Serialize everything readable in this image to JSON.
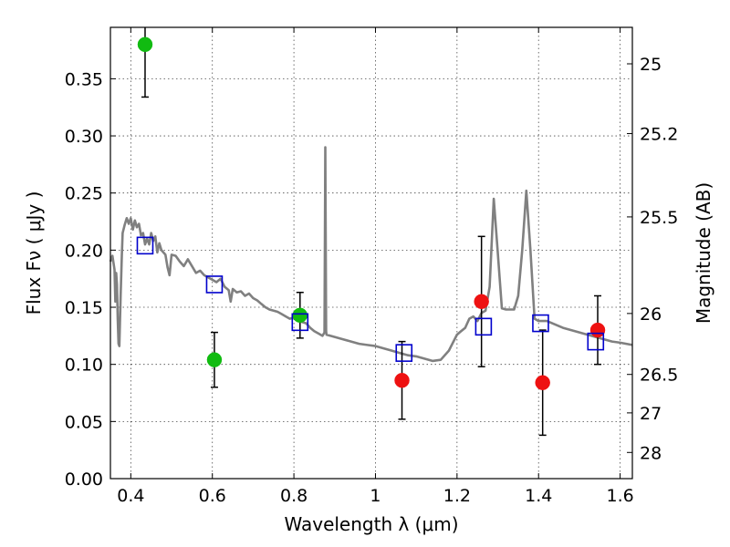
{
  "chart_data": {
    "type": "scatter",
    "xlabel": "Wavelength  λ (μm)",
    "ylabel": "Flux  Fν  ( μJy )",
    "ylabel_right": "Magnitude (AB)",
    "xlim": [
      0.35,
      1.63
    ],
    "ylim": [
      0.0,
      0.395
    ],
    "grid": true,
    "x_ticks": [
      0.4,
      0.6,
      0.8,
      1.0,
      1.2,
      1.4,
      1.6
    ],
    "x_tick_labels": [
      "0.4",
      "0.6",
      "0.8",
      "1",
      "1.2",
      "1.4",
      "1.6"
    ],
    "y_ticks": [
      0.0,
      0.05,
      0.1,
      0.15,
      0.2,
      0.25,
      0.3,
      0.35
    ],
    "y_tick_labels": [
      "0.00",
      "0.05",
      "0.10",
      "0.15",
      "0.20",
      "0.25",
      "0.30",
      "0.35"
    ],
    "right_ticks": [
      {
        "label": "25",
        "mag": 25.0
      },
      {
        "label": "25.2",
        "mag": 25.2
      },
      {
        "label": "25.5",
        "mag": 25.5
      },
      {
        "label": "26",
        "mag": 26.0
      },
      {
        "label": "26.5",
        "mag": 26.5
      },
      {
        "label": "27",
        "mag": 27.0
      },
      {
        "label": "28",
        "mag": 28.0
      }
    ],
    "colors": {
      "model": "#808080",
      "green": "#11bb11",
      "red": "#ee1111",
      "square": "#0000cc",
      "errorbar": "#000000"
    },
    "series": [
      {
        "kind": "line",
        "points": [
          [
            0.35,
            0.19
          ],
          [
            0.355,
            0.195
          ],
          [
            0.36,
            0.183
          ],
          [
            0.362,
            0.155
          ],
          [
            0.364,
            0.18
          ],
          [
            0.366,
            0.17
          ],
          [
            0.368,
            0.14
          ],
          [
            0.37,
            0.118
          ],
          [
            0.372,
            0.116
          ],
          [
            0.375,
            0.16
          ],
          [
            0.378,
            0.195
          ],
          [
            0.38,
            0.215
          ],
          [
            0.385,
            0.222
          ],
          [
            0.39,
            0.228
          ],
          [
            0.395,
            0.223
          ],
          [
            0.4,
            0.228
          ],
          [
            0.405,
            0.218
          ],
          [
            0.41,
            0.226
          ],
          [
            0.415,
            0.22
          ],
          [
            0.42,
            0.223
          ],
          [
            0.425,
            0.213
          ],
          [
            0.43,
            0.215
          ],
          [
            0.435,
            0.205
          ],
          [
            0.44,
            0.21
          ],
          [
            0.445,
            0.205
          ],
          [
            0.45,
            0.215
          ],
          [
            0.455,
            0.208
          ],
          [
            0.46,
            0.212
          ],
          [
            0.465,
            0.198
          ],
          [
            0.47,
            0.206
          ],
          [
            0.475,
            0.2
          ],
          [
            0.48,
            0.198
          ],
          [
            0.485,
            0.196
          ],
          [
            0.49,
            0.185
          ],
          [
            0.495,
            0.178
          ],
          [
            0.5,
            0.196
          ],
          [
            0.51,
            0.195
          ],
          [
            0.52,
            0.19
          ],
          [
            0.53,
            0.186
          ],
          [
            0.54,
            0.192
          ],
          [
            0.55,
            0.186
          ],
          [
            0.56,
            0.18
          ],
          [
            0.57,
            0.182
          ],
          [
            0.58,
            0.178
          ],
          [
            0.59,
            0.176
          ],
          [
            0.6,
            0.174
          ],
          [
            0.61,
            0.172
          ],
          [
            0.62,
            0.175
          ],
          [
            0.63,
            0.168
          ],
          [
            0.64,
            0.165
          ],
          [
            0.645,
            0.155
          ],
          [
            0.65,
            0.166
          ],
          [
            0.66,
            0.163
          ],
          [
            0.67,
            0.164
          ],
          [
            0.68,
            0.16
          ],
          [
            0.69,
            0.162
          ],
          [
            0.7,
            0.158
          ],
          [
            0.71,
            0.156
          ],
          [
            0.72,
            0.153
          ],
          [
            0.73,
            0.15
          ],
          [
            0.74,
            0.148
          ],
          [
            0.75,
            0.147
          ],
          [
            0.76,
            0.146
          ],
          [
            0.77,
            0.144
          ],
          [
            0.78,
            0.142
          ],
          [
            0.79,
            0.14
          ],
          [
            0.8,
            0.141
          ],
          [
            0.81,
            0.14
          ],
          [
            0.82,
            0.137
          ],
          [
            0.83,
            0.136
          ],
          [
            0.84,
            0.132
          ],
          [
            0.85,
            0.129
          ],
          [
            0.86,
            0.127
          ],
          [
            0.87,
            0.125
          ],
          [
            0.875,
            0.128
          ],
          [
            0.877,
            0.29
          ],
          [
            0.879,
            0.129
          ],
          [
            0.88,
            0.126
          ],
          [
            0.9,
            0.124
          ],
          [
            0.92,
            0.122
          ],
          [
            0.94,
            0.12
          ],
          [
            0.96,
            0.118
          ],
          [
            0.98,
            0.117
          ],
          [
            1.0,
            0.116
          ],
          [
            1.02,
            0.114
          ],
          [
            1.04,
            0.112
          ],
          [
            1.06,
            0.11
          ],
          [
            1.08,
            0.108
          ],
          [
            1.1,
            0.107
          ],
          [
            1.12,
            0.105
          ],
          [
            1.14,
            0.103
          ],
          [
            1.16,
            0.104
          ],
          [
            1.18,
            0.112
          ],
          [
            1.2,
            0.126
          ],
          [
            1.21,
            0.129
          ],
          [
            1.22,
            0.132
          ],
          [
            1.23,
            0.14
          ],
          [
            1.24,
            0.142
          ],
          [
            1.25,
            0.138
          ],
          [
            1.26,
            0.145
          ],
          [
            1.27,
            0.147
          ],
          [
            1.28,
            0.168
          ],
          [
            1.29,
            0.245
          ],
          [
            1.3,
            0.198
          ],
          [
            1.31,
            0.149
          ],
          [
            1.32,
            0.148
          ],
          [
            1.33,
            0.148
          ],
          [
            1.34,
            0.148
          ],
          [
            1.35,
            0.16
          ],
          [
            1.36,
            0.2
          ],
          [
            1.37,
            0.252
          ],
          [
            1.38,
            0.2
          ],
          [
            1.39,
            0.14
          ],
          [
            1.4,
            0.138
          ],
          [
            1.42,
            0.138
          ],
          [
            1.44,
            0.135
          ],
          [
            1.46,
            0.132
          ],
          [
            1.48,
            0.13
          ],
          [
            1.5,
            0.128
          ],
          [
            1.52,
            0.126
          ],
          [
            1.54,
            0.124
          ],
          [
            1.56,
            0.122
          ],
          [
            1.58,
            0.12
          ],
          [
            1.6,
            0.119
          ],
          [
            1.63,
            0.117
          ]
        ]
      },
      {
        "kind": "point",
        "marker": "circle",
        "color_key": "green",
        "points": [
          {
            "x": 0.435,
            "y": 0.38,
            "err": 0.046
          },
          {
            "x": 0.605,
            "y": 0.104,
            "err": 0.024
          },
          {
            "x": 0.815,
            "y": 0.143,
            "err": 0.02
          }
        ]
      },
      {
        "kind": "point",
        "marker": "circle",
        "color_key": "red",
        "points": [
          {
            "x": 1.065,
            "y": 0.086,
            "err": 0.034
          },
          {
            "x": 1.26,
            "y": 0.155,
            "err": 0.057
          },
          {
            "x": 1.41,
            "y": 0.084,
            "err": 0.046
          },
          {
            "x": 1.545,
            "y": 0.13,
            "err": 0.03
          }
        ]
      },
      {
        "kind": "point",
        "marker": "square",
        "color_key": "square",
        "points": [
          {
            "x": 0.435,
            "y": 0.204
          },
          {
            "x": 0.605,
            "y": 0.17
          },
          {
            "x": 0.815,
            "y": 0.137
          },
          {
            "x": 1.07,
            "y": 0.11
          },
          {
            "x": 1.265,
            "y": 0.133
          },
          {
            "x": 1.405,
            "y": 0.136
          },
          {
            "x": 1.54,
            "y": 0.12
          }
        ]
      }
    ]
  }
}
